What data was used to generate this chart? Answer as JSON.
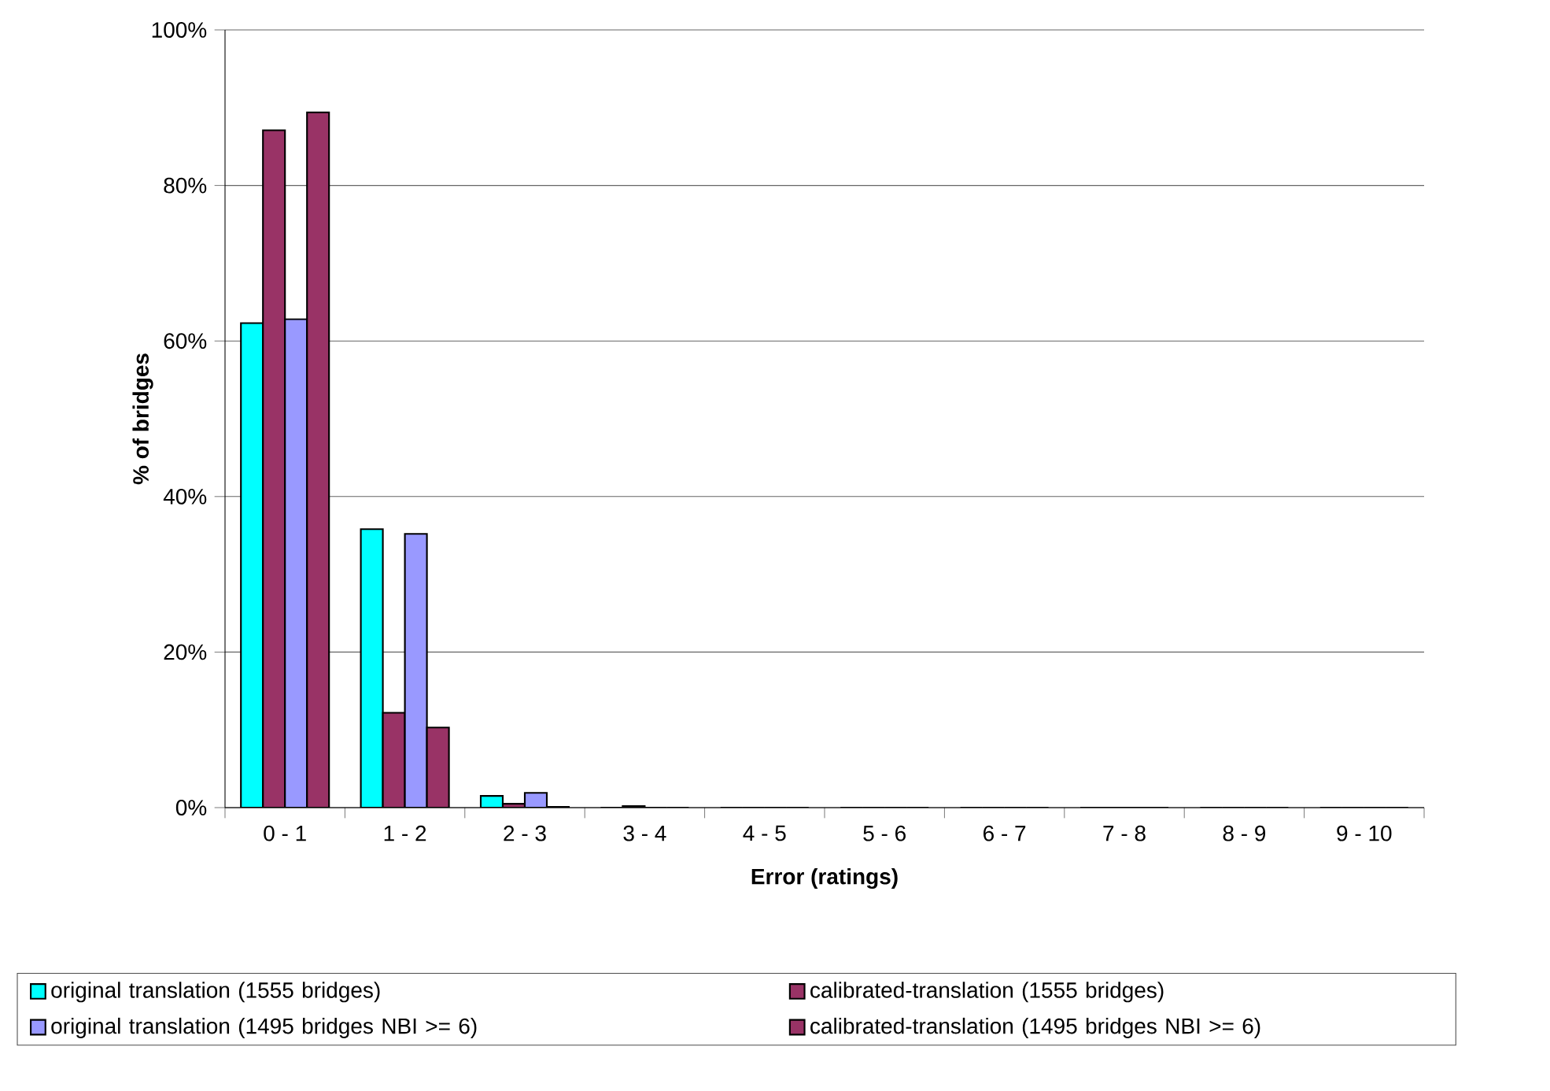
{
  "chart_data": {
    "type": "bar",
    "xlabel": "Error (ratings)",
    "ylabel": "% of bridges",
    "categories": [
      "0 - 1",
      "1 - 2",
      "2 - 3",
      "3 - 4",
      "4 - 5",
      "5 - 6",
      "6 - 7",
      "7 - 8",
      "8 - 9",
      "9 - 10"
    ],
    "series": [
      {
        "name": "original translation (1555 bridges)",
        "color": "#00ffff",
        "values": [
          62.3,
          35.8,
          1.5,
          0,
          0,
          0,
          0,
          0,
          0,
          0
        ]
      },
      {
        "name": "calibrated-translation (1555 bridges)",
        "color": "#993366",
        "values": [
          87.1,
          12.2,
          0.5,
          0.2,
          0,
          0,
          0,
          0,
          0,
          0
        ]
      },
      {
        "name": "original translation (1495 bridges NBI >= 6)",
        "color": "#9999ff",
        "values": [
          62.8,
          35.2,
          1.9,
          0,
          0,
          0,
          0,
          0,
          0,
          0
        ]
      },
      {
        "name": "calibrated-translation (1495 bridges NBI >= 6)",
        "color": "#993366",
        "values": [
          89.4,
          10.3,
          0.1,
          0,
          0,
          0,
          0,
          0,
          0,
          0
        ]
      }
    ],
    "ylim": [
      0,
      100
    ],
    "yticks": [
      {
        "value": 0,
        "label": "0%"
      },
      {
        "value": 20,
        "label": "20%"
      },
      {
        "value": 40,
        "label": "40%"
      },
      {
        "value": 60,
        "label": "60%"
      },
      {
        "value": 80,
        "label": "80%"
      },
      {
        "value": 100,
        "label": "100%"
      }
    ],
    "grid": "y",
    "legend": "bottom"
  }
}
